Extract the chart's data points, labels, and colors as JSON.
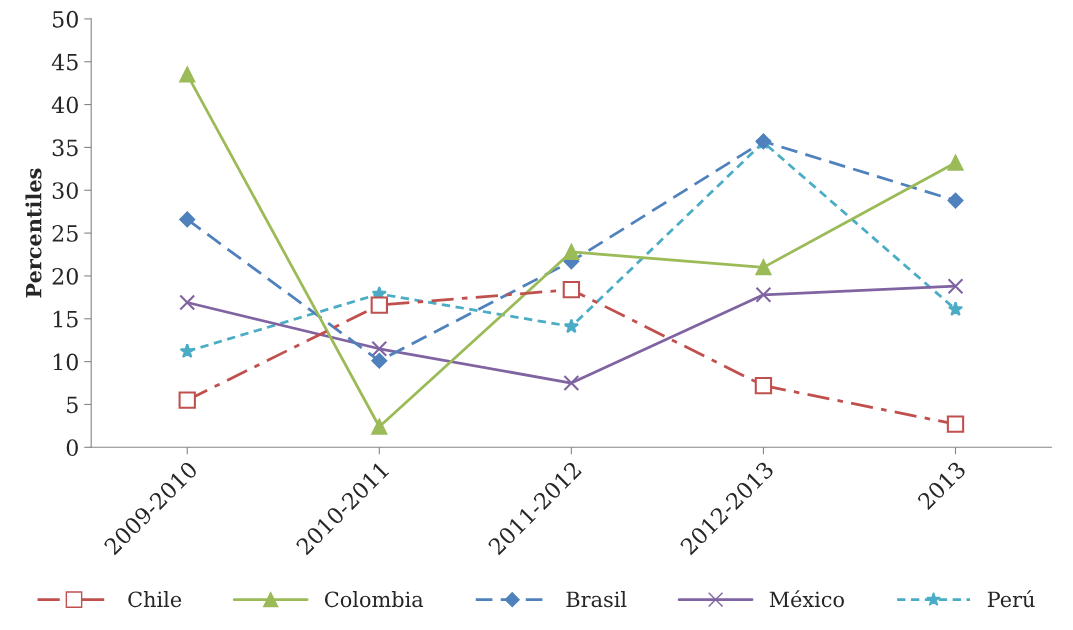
{
  "chart_data": {
    "type": "line",
    "categories": [
      "2009-2010",
      "2010-2011",
      "2011-2012",
      "2012-2013",
      "2013"
    ],
    "ylabel": "Percentiles",
    "ylim": [
      0,
      50
    ],
    "yticks": [
      0,
      5,
      10,
      15,
      20,
      25,
      30,
      35,
      40,
      45,
      50
    ],
    "grid": false,
    "legend": "bottom",
    "series": [
      {
        "name": "Chile",
        "color": "#c0504d",
        "marker": "square",
        "line_style": "dashdot",
        "values": [
          5.5,
          16.6,
          18.4,
          7.2,
          2.7
        ]
      },
      {
        "name": "Colombia",
        "color": "#9bbb59",
        "marker": "triangle",
        "line_style": "solid",
        "values": [
          43.5,
          2.4,
          22.8,
          21.0,
          33.2
        ]
      },
      {
        "name": "Brasil",
        "color": "#4f81bd",
        "marker": "diamond",
        "line_style": "dashed",
        "values": [
          26.6,
          10.1,
          21.7,
          35.7,
          28.8
        ]
      },
      {
        "name": "México",
        "color": "#8064a2",
        "marker": "cross",
        "line_style": "solid",
        "values": [
          16.9,
          11.5,
          7.5,
          17.8,
          18.8
        ]
      },
      {
        "name": "Perú",
        "color": "#4bacc6",
        "marker": "star",
        "line_style": "dotted",
        "values": [
          11.2,
          17.9,
          14.1,
          35.6,
          16.1
        ]
      }
    ]
  }
}
